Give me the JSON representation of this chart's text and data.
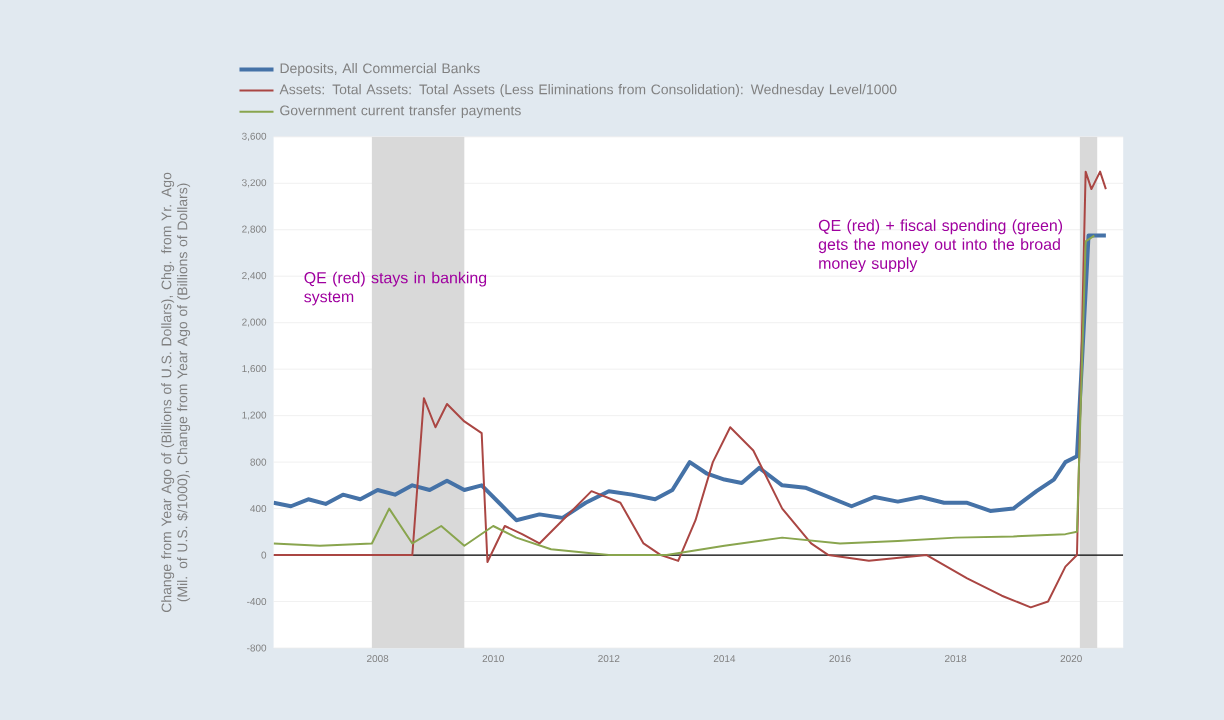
{
  "chart_data": {
    "type": "line",
    "ylabel": "Change from Year Ago of (Billions of U.S. Dollars), Chg. from Yr. Ago (Mil. of U.S. $/1000), Change from Year Ago of (Billions of Dollars)",
    "legend": "top",
    "grid": "y",
    "line_style": "solid",
    "marker": "none",
    "xlim": [
      2006.2,
      2020.9
    ],
    "xticks": [
      2008,
      2010,
      2012,
      2014,
      2016,
      2018,
      2020
    ],
    "ylim": [
      -800,
      3600
    ],
    "yticks": [
      {
        "value": -800,
        "label": "-800"
      },
      {
        "value": -400,
        "label": "-400"
      },
      0,
      400,
      800,
      {
        "value": 1200,
        "label": "1,200"
      },
      {
        "value": 1600,
        "label": "1,600"
      },
      {
        "value": 2000,
        "label": "2,000"
      },
      {
        "value": 2400,
        "label": "2,400"
      },
      {
        "value": 2800,
        "label": "2,800"
      },
      {
        "value": 3200,
        "label": "3,200"
      },
      {
        "value": 3600,
        "label": "3,600"
      }
    ],
    "series": [
      {
        "name": "Deposits, All Commercial Banks",
        "color": "#4572a7",
        "x": [
          2006.2,
          2006.5,
          2006.8,
          2007.1,
          2007.4,
          2007.7,
          2008.0,
          2008.3,
          2008.6,
          2008.9,
          2009.2,
          2009.5,
          2009.8,
          2010.1,
          2010.4,
          2010.8,
          2011.2,
          2011.6,
          2012.0,
          2012.4,
          2012.8,
          2013.1,
          2013.4,
          2013.7,
          2014.0,
          2014.3,
          2014.6,
          2015.0,
          2015.4,
          2015.8,
          2016.2,
          2016.6,
          2017.0,
          2017.4,
          2017.8,
          2018.2,
          2018.6,
          2019.0,
          2019.4,
          2019.7,
          2019.9,
          2020.1,
          2020.3,
          2020.5,
          2020.6
        ],
        "values": [
          450,
          420,
          480,
          440,
          520,
          480,
          560,
          520,
          600,
          560,
          640,
          560,
          600,
          450,
          300,
          350,
          320,
          450,
          550,
          520,
          480,
          560,
          800,
          700,
          650,
          620,
          750,
          600,
          580,
          500,
          420,
          500,
          460,
          500,
          450,
          450,
          380,
          400,
          550,
          650,
          800,
          850,
          2750,
          2750,
          2750
        ]
      },
      {
        "name": "Assets: Total Assets: Total Assets (Less Eliminations from Consolidation): Wednesday Level/1000",
        "color": "#aa4643",
        "x": [
          2006.2,
          2007.0,
          2008.0,
          2008.6,
          2008.8,
          2009.0,
          2009.2,
          2009.5,
          2009.8,
          2009.9,
          2010.2,
          2010.5,
          2010.8,
          2011.2,
          2011.7,
          2012.2,
          2012.6,
          2012.9,
          2013.2,
          2013.5,
          2013.8,
          2014.1,
          2014.5,
          2015.0,
          2015.5,
          2015.8,
          2016.5,
          2017.5,
          2018.2,
          2018.8,
          2019.3,
          2019.6,
          2019.9,
          2020.1,
          2020.25,
          2020.35,
          2020.5,
          2020.6
        ],
        "values": [
          0,
          0,
          0,
          0,
          1350,
          1100,
          1300,
          1150,
          1050,
          -60,
          250,
          180,
          100,
          300,
          550,
          450,
          100,
          0,
          -50,
          300,
          800,
          1100,
          900,
          400,
          100,
          0,
          -50,
          0,
          -200,
          -350,
          -450,
          -400,
          -100,
          0,
          3300,
          3150,
          3300,
          3150
        ]
      },
      {
        "name": "Government current transfer payments",
        "color": "#89a54e",
        "x": [
          2006.2,
          2007.0,
          2007.9,
          2008.2,
          2008.6,
          2009.1,
          2009.5,
          2010.0,
          2010.4,
          2011.0,
          2012.0,
          2013.0,
          2014.0,
          2015.0,
          2016.0,
          2017.0,
          2018.0,
          2019.0,
          2019.9,
          2020.1,
          2020.25,
          2020.4
        ],
        "values": [
          100,
          80,
          100,
          400,
          100,
          250,
          80,
          250,
          150,
          50,
          0,
          0,
          80,
          150,
          100,
          120,
          150,
          160,
          180,
          200,
          2700,
          2750
        ]
      }
    ],
    "bands": [
      {
        "axis": "x",
        "from": 2007.9,
        "to": 2009.5,
        "color": "#d9d9d9"
      },
      {
        "axis": "x",
        "from": 2020.15,
        "to": 2020.45,
        "color": "#d9d9d9"
      }
    ],
    "ref_lines": [
      {
        "axis": "y",
        "value": 0,
        "color": "#000000"
      }
    ],
    "annotations": [
      "QE (red) stays in banking system",
      "QE (red) + fiscal spending (green) gets the money out into the broad money supply"
    ]
  }
}
